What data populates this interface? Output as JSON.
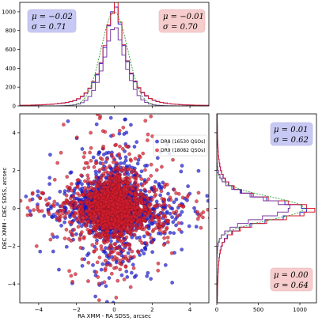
{
  "chart_data": [
    {
      "type": "histogram",
      "panel": "top",
      "xlim": [
        -5,
        5
      ],
      "ylim": [
        0,
        1100
      ],
      "yticks": [
        0,
        200,
        400,
        600,
        800,
        1000
      ],
      "bin_width": 0.2,
      "bin_centers": [
        -4.9,
        -4.7,
        -4.5,
        -4.3,
        -4.1,
        -3.9,
        -3.7,
        -3.5,
        -3.3,
        -3.1,
        -2.9,
        -2.7,
        -2.5,
        -2.3,
        -2.1,
        -1.9,
        -1.7,
        -1.5,
        -1.3,
        -1.1,
        -0.9,
        -0.7,
        -0.5,
        -0.3,
        -0.1,
        0.1,
        0.3,
        0.5,
        0.7,
        0.9,
        1.1,
        1.3,
        1.5,
        1.7,
        1.9,
        2.1,
        2.3,
        2.5,
        2.7,
        2.9,
        3.1,
        3.3,
        3.5,
        3.7,
        3.9,
        4.1,
        4.3,
        4.5,
        4.7,
        4.9
      ],
      "series": [
        {
          "values": [
            6,
            7,
            8,
            9,
            10,
            12,
            14,
            16,
            18,
            21,
            26,
            30,
            36,
            45,
            56,
            75,
            100,
            135,
            185,
            250,
            330,
            450,
            620,
            850,
            1000,
            1050,
            870,
            640,
            470,
            340,
            255,
            190,
            140,
            105,
            78,
            60,
            46,
            37,
            30,
            24,
            20,
            17,
            14,
            12,
            10,
            9,
            8,
            7,
            6,
            6
          ],
          "color": "#1f1fd8"
        },
        {
          "values": [
            6,
            7,
            8,
            9,
            11,
            12,
            14,
            17,
            19,
            22,
            27,
            32,
            38,
            47,
            58,
            78,
            104,
            140,
            190,
            260,
            340,
            460,
            640,
            860,
            980,
            1100,
            890,
            650,
            480,
            350,
            265,
            195,
            145,
            110,
            80,
            62,
            48,
            38,
            31,
            25,
            21,
            18,
            15,
            12,
            11,
            9,
            8,
            7,
            6,
            6
          ],
          "color": "#d81f2f"
        },
        {
          "values": [
            0,
            0,
            0,
            0,
            0,
            0,
            0,
            0,
            0,
            0,
            1,
            2,
            4,
            7,
            12,
            20,
            35,
            60,
            100,
            165,
            250,
            370,
            520,
            690,
            810,
            830,
            700,
            540,
            390,
            270,
            175,
            110,
            65,
            38,
            22,
            12,
            7,
            4,
            2,
            1,
            1,
            0,
            0,
            0,
            0,
            0,
            0,
            0,
            0,
            0
          ],
          "color": "#7a3ca0"
        }
      ],
      "gaussian_fit": {
        "mu": 0.0,
        "sigma": 0.7,
        "peak": 1000,
        "color": "#2ca02c"
      },
      "annotations": [
        {
          "label": "μ = −0.02",
          "label2": "σ = 0.71",
          "box_color": "#c8c8f4"
        },
        {
          "label": "μ = −0.01",
          "label2": "σ = 0.70",
          "box_color": "#f6cccc"
        }
      ]
    },
    {
      "type": "scatter",
      "panel": "main",
      "xlim": [
        -5,
        5
      ],
      "ylim": [
        -5,
        5
      ],
      "xticks": [
        -4,
        -2,
        0,
        2,
        4
      ],
      "yticks": [
        -4,
        -2,
        0,
        2,
        4
      ],
      "xlabel": "RA XMM - RA SDSS, arcsec",
      "ylabel": "DEC XMM - DEC SDSS, arcsec",
      "legend_placement": "top-right",
      "series": [
        {
          "name": "DR8 (16530 QSOs)",
          "color": "#1f1fd8",
          "sigma_x": 0.71,
          "sigma_y": 0.62
        },
        {
          "name": "DR9 (18082 QSOs)",
          "color": "#d81f2f",
          "sigma_x": 0.7,
          "sigma_y": 0.64
        }
      ]
    },
    {
      "type": "histogram",
      "panel": "right",
      "orientation": "horizontal",
      "xlim": [
        0,
        1200
      ],
      "xticks": [
        0,
        500,
        1000
      ],
      "ylim": [
        -5,
        5
      ],
      "bin_width": 0.2,
      "bin_centers": [
        -4.9,
        -4.7,
        -4.5,
        -4.3,
        -4.1,
        -3.9,
        -3.7,
        -3.5,
        -3.3,
        -3.1,
        -2.9,
        -2.7,
        -2.5,
        -2.3,
        -2.1,
        -1.9,
        -1.7,
        -1.5,
        -1.3,
        -1.1,
        -0.9,
        -0.7,
        -0.5,
        -0.3,
        -0.1,
        0.1,
        0.3,
        0.5,
        0.7,
        0.9,
        1.1,
        1.3,
        1.5,
        1.7,
        1.9,
        2.1,
        2.3,
        2.5,
        2.7,
        2.9,
        3.1,
        3.3,
        3.5,
        3.7,
        3.9,
        4.1,
        4.3,
        4.5,
        4.7,
        4.9
      ],
      "series": [
        {
          "values": [
            6,
            6,
            7,
            8,
            9,
            11,
            12,
            14,
            16,
            19,
            23,
            27,
            32,
            40,
            50,
            65,
            90,
            125,
            180,
            270,
            400,
            580,
            800,
            1000,
            1080,
            1020,
            820,
            600,
            420,
            290,
            200,
            140,
            100,
            75,
            56,
            44,
            35,
            28,
            22,
            18,
            15,
            12,
            10,
            9,
            8,
            7,
            6,
            6,
            5,
            5
          ],
          "color": "#1f1fd8"
        },
        {
          "values": [
            6,
            7,
            8,
            9,
            10,
            12,
            13,
            15,
            17,
            20,
            24,
            28,
            34,
            42,
            52,
            68,
            95,
            130,
            190,
            285,
            420,
            600,
            840,
            1050,
            1180,
            1080,
            860,
            620,
            440,
            300,
            210,
            145,
            105,
            78,
            58,
            45,
            36,
            29,
            23,
            19,
            16,
            13,
            11,
            9,
            8,
            7,
            7,
            6,
            6,
            5
          ],
          "color": "#d81f2f"
        },
        {
          "values": [
            0,
            0,
            0,
            0,
            0,
            0,
            0,
            0,
            0,
            0,
            1,
            2,
            3,
            6,
            10,
            18,
            30,
            55,
            95,
            160,
            250,
            380,
            550,
            730,
            860,
            880,
            740,
            560,
            400,
            280,
            180,
            110,
            65,
            38,
            21,
            12,
            6,
            3,
            2,
            1,
            0,
            0,
            0,
            0,
            0,
            0,
            0,
            0,
            0,
            0
          ],
          "color": "#7a3ca0"
        }
      ],
      "gaussian_fit": {
        "mu": 0.0,
        "sigma": 0.62,
        "peak": 1050,
        "color": "#2ca02c"
      },
      "annotations": [
        {
          "label": "μ = 0.01",
          "label2": "σ = 0.62",
          "box_color": "#c8c8f4"
        },
        {
          "label": "μ = 0.00",
          "label2": "σ = 0.64",
          "box_color": "#f6cccc"
        }
      ]
    }
  ]
}
